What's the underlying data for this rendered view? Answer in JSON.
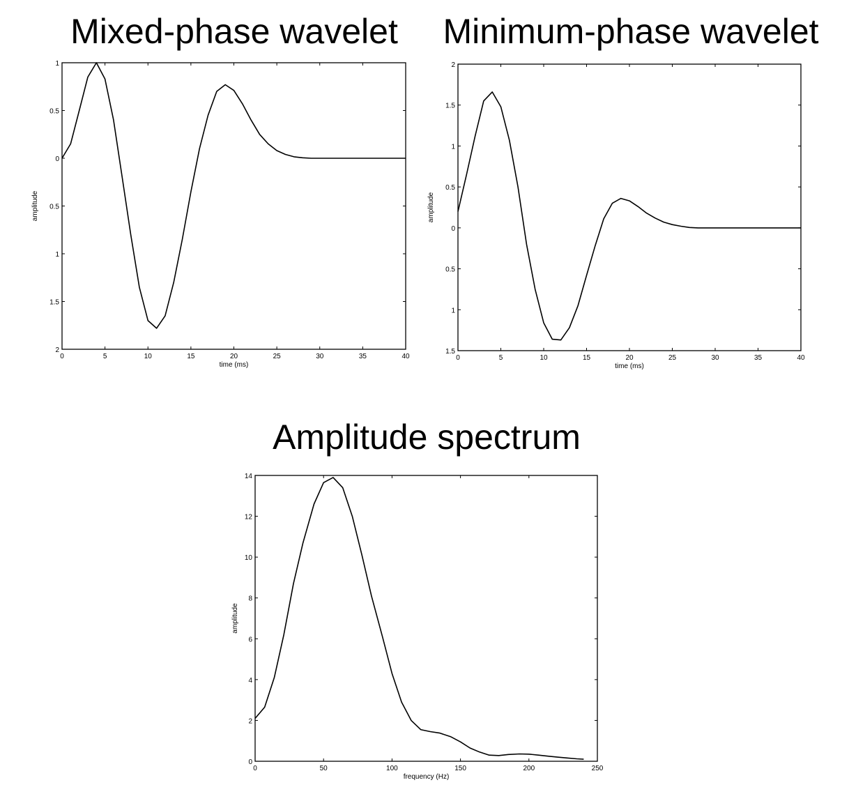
{
  "chart_data": [
    {
      "type": "line",
      "title": "Mixed-phase wavelet",
      "xlabel": "time (ms)",
      "ylabel": "amplitude",
      "xlim": [
        0,
        40
      ],
      "ylim": [
        -2,
        1
      ],
      "xticks": [
        0,
        5,
        10,
        15,
        20,
        25,
        30,
        35,
        40
      ],
      "xtick_labels": [
        "0",
        "5",
        "10",
        "15",
        "20",
        "25",
        "30",
        "35",
        "40"
      ],
      "yticks": [
        1,
        0.5,
        0,
        -0.5,
        -1,
        -1.5,
        -2
      ],
      "ytick_labels": [
        "1",
        "0.5",
        "0",
        "0.5",
        "1",
        "1.5",
        "2"
      ],
      "grid": false,
      "x": [
        0,
        1,
        2,
        3,
        4,
        5,
        6,
        7,
        8,
        9,
        10,
        11,
        12,
        13,
        14,
        15,
        16,
        17,
        18,
        19,
        20,
        21,
        22,
        23,
        24,
        25,
        26,
        27,
        28,
        29,
        40
      ],
      "y": [
        0,
        0.15,
        0.5,
        0.85,
        1.0,
        0.83,
        0.4,
        -0.2,
        -0.8,
        -1.35,
        -1.7,
        -1.78,
        -1.65,
        -1.3,
        -0.85,
        -0.35,
        0.1,
        0.45,
        0.7,
        0.77,
        0.71,
        0.57,
        0.4,
        0.25,
        0.15,
        0.08,
        0.04,
        0.015,
        0.005,
        0,
        0
      ]
    },
    {
      "type": "line",
      "title": "Minimum-phase wavelet",
      "xlabel": "time (ms)",
      "ylabel": "amplitude",
      "xlim": [
        0,
        40
      ],
      "ylim": [
        -1.5,
        2
      ],
      "xticks": [
        0,
        5,
        10,
        15,
        20,
        25,
        30,
        35,
        40
      ],
      "xtick_labels": [
        "0",
        "5",
        "10",
        "15",
        "20",
        "25",
        "30",
        "35",
        "40"
      ],
      "yticks": [
        2,
        1.5,
        1,
        0.5,
        0,
        -0.5,
        -1,
        -1.5
      ],
      "ytick_labels": [
        "2",
        "1.5",
        "1",
        "0.5",
        "0",
        "0.5",
        "1",
        "1.5"
      ],
      "grid": false,
      "x": [
        0,
        1,
        2,
        3,
        4,
        5,
        6,
        7,
        8,
        9,
        10,
        11,
        12,
        13,
        14,
        15,
        16,
        17,
        18,
        19,
        20,
        21,
        22,
        23,
        24,
        25,
        26,
        27,
        28,
        40
      ],
      "y": [
        0.2,
        0.65,
        1.12,
        1.55,
        1.66,
        1.48,
        1.07,
        0.5,
        -0.2,
        -0.75,
        -1.16,
        -1.36,
        -1.37,
        -1.22,
        -0.95,
        -0.58,
        -0.22,
        0.11,
        0.3,
        0.36,
        0.33,
        0.26,
        0.18,
        0.12,
        0.07,
        0.04,
        0.02,
        0.005,
        0,
        0
      ]
    },
    {
      "type": "line",
      "title": "Amplitude spectrum",
      "xlabel": "frequency (Hz)",
      "ylabel": "amplitude",
      "xlim": [
        0,
        250
      ],
      "ylim": [
        0,
        14
      ],
      "xticks": [
        0,
        50,
        100,
        150,
        200,
        250
      ],
      "xtick_labels": [
        "0",
        "50",
        "100",
        "150",
        "200",
        "250"
      ],
      "yticks": [
        14,
        12,
        10,
        8,
        6,
        4,
        2,
        0
      ],
      "ytick_labels": [
        "14",
        "12",
        "10",
        "8",
        "6",
        "4",
        "2",
        "0"
      ],
      "grid": false,
      "x": [
        0,
        7,
        14,
        21,
        28,
        35,
        43,
        50,
        57,
        64,
        71,
        78,
        85,
        93,
        100,
        107,
        114,
        121,
        128,
        135,
        143,
        150,
        157,
        164,
        171,
        178,
        185,
        193,
        200,
        207,
        214,
        221,
        228,
        235,
        240
      ],
      "y": [
        2.1,
        2.65,
        4.1,
        6.2,
        8.7,
        10.7,
        12.6,
        13.65,
        13.9,
        13.4,
        12.0,
        10.1,
        8.1,
        6.1,
        4.3,
        2.9,
        2.0,
        1.55,
        1.45,
        1.38,
        1.2,
        0.95,
        0.65,
        0.45,
        0.3,
        0.28,
        0.33,
        0.36,
        0.35,
        0.3,
        0.25,
        0.2,
        0.16,
        0.12,
        0.1
      ]
    }
  ]
}
